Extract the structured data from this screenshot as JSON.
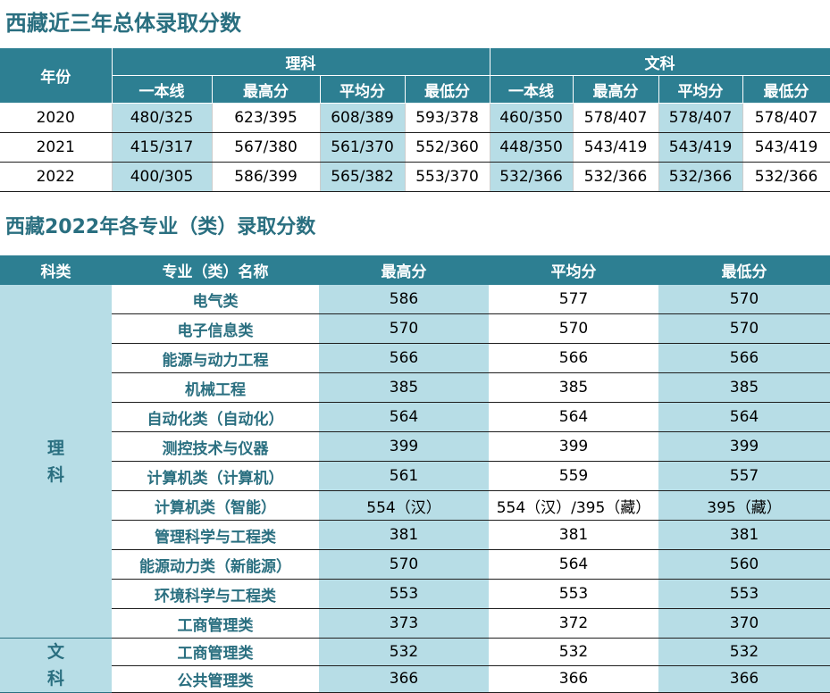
{
  "title1": "西藏近三年总体录取分数",
  "title2": "西藏2022年各专业（类）录取分数",
  "table1": {
    "year_header": "年份",
    "group_science": "理科",
    "group_arts": "文科",
    "sub_headers": [
      "一本线",
      "最高分",
      "平均分",
      "最低分",
      "一本线",
      "最高分",
      "平均分",
      "最低分"
    ],
    "rows": [
      {
        "year": "2020",
        "cells": [
          "480/325",
          "623/395",
          "608/389",
          "593/378",
          "460/350",
          "578/407",
          "578/407",
          "578/407"
        ]
      },
      {
        "year": "2021",
        "cells": [
          "415/317",
          "567/380",
          "561/370",
          "552/360",
          "448/350",
          "543/419",
          "543/419",
          "543/419"
        ]
      },
      {
        "year": "2022",
        "cells": [
          "400/305",
          "586/399",
          "565/382",
          "553/370",
          "532/366",
          "532/366",
          "532/366",
          "532/366"
        ]
      }
    ]
  },
  "table2": {
    "headers": [
      "科类",
      "专业（类）名称",
      "最高分",
      "平均分",
      "最低分"
    ],
    "science_label": "理科",
    "arts_label": "文科",
    "science_rows": [
      {
        "major": "电气类",
        "max": "586",
        "avg": "577",
        "min": "570"
      },
      {
        "major": "电子信息类",
        "max": "570",
        "avg": "570",
        "min": "570"
      },
      {
        "major": "能源与动力工程",
        "max": "566",
        "avg": "566",
        "min": "566"
      },
      {
        "major": "机械工程",
        "max": "385",
        "avg": "385",
        "min": "385"
      },
      {
        "major": "自动化类（自动化）",
        "max": "564",
        "avg": "564",
        "min": "564"
      },
      {
        "major": "测控技术与仪器",
        "max": "399",
        "avg": "399",
        "min": "399"
      },
      {
        "major": "计算机类（计算机）",
        "max": "561",
        "avg": "559",
        "min": "557"
      },
      {
        "major": "计算机类（智能）",
        "max": "554（汉）",
        "avg": "554（汉）/395（藏）",
        "min": "395（藏）"
      },
      {
        "major": "管理科学与工程类",
        "max": "381",
        "avg": "381",
        "min": "381"
      },
      {
        "major": "能源动力类（新能源）",
        "max": "570",
        "avg": "564",
        "min": "560"
      },
      {
        "major": "环境科学与工程类",
        "max": "553",
        "avg": "553",
        "min": "553"
      },
      {
        "major": "工商管理类",
        "max": "373",
        "avg": "372",
        "min": "370"
      }
    ],
    "arts_rows": [
      {
        "major": "工商管理类",
        "max": "532",
        "avg": "532",
        "min": "532"
      },
      {
        "major": "公共管理类",
        "max": "366",
        "avg": "366",
        "min": "366"
      }
    ]
  }
}
